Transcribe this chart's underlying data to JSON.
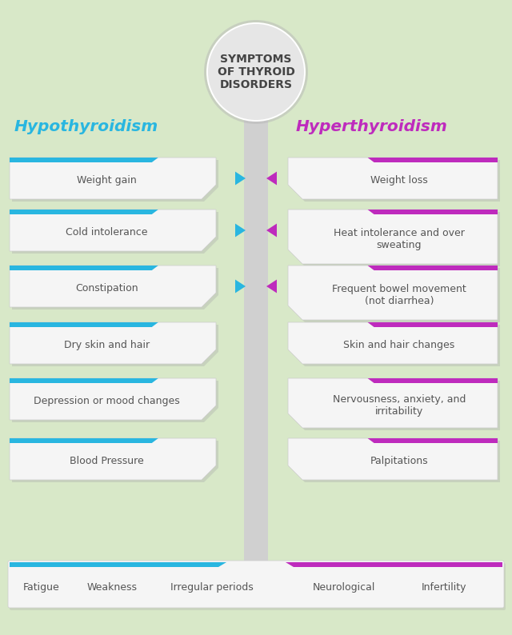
{
  "bg_color": "#d8e8c8",
  "title_lines": [
    "SYMPTOMS",
    "OF THYROID",
    "DISORDERS"
  ],
  "left_title": "Hypothyroidism",
  "right_title": "Hyperthyroidism",
  "left_color": "#29b6e0",
  "right_color": "#be2bbd",
  "left_items": [
    "Weight gain",
    "Cold intolerance",
    "Constipation",
    "Dry skin and hair",
    "Depression or mood changes",
    "Blood Pressure"
  ],
  "right_items": [
    "Weight loss",
    "Heat intolerance and over\nsweating",
    "Frequent bowel movement\n(not diarrhea)",
    "Skin and hair changes",
    "Nervousness, anxiety, and\nirritability",
    "Palpitations"
  ],
  "arrows_rows": [
    0,
    1,
    2
  ],
  "bottom_left_items": [
    "Fatigue",
    "Weakness",
    "Irregular periods"
  ],
  "bottom_right_items": [
    "Neurological",
    "Infertility"
  ],
  "text_color": "#555555",
  "circle_fill": "#e6e6e6",
  "circle_edge": "#cccccc",
  "box_fill": "#f5f5f5",
  "box_shadow": "#c8c8c8",
  "center_bar_color": "#d0d0d0",
  "title_color": "#444444"
}
